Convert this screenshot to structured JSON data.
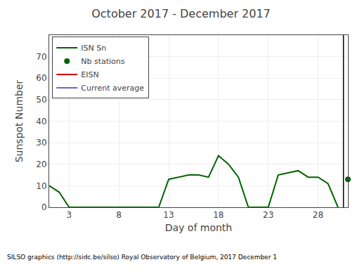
{
  "chart_data": {
    "type": "line",
    "title": "October 2017 - December 2017",
    "xlabel": "Day of month",
    "ylabel": "Sunspot Number",
    "annotations": [
      "SILSO graphics (http://sidc.be/silso) Royal Observatory of Belgium, 2017 December 1"
    ],
    "x": [
      1,
      2,
      3,
      4,
      5,
      6,
      7,
      8,
      9,
      10,
      11,
      12,
      13,
      14,
      15,
      16,
      17,
      18,
      19,
      20,
      21,
      22,
      23,
      24,
      25,
      26,
      27,
      28,
      29,
      30
    ],
    "series": [
      {
        "name": "ISN Sn",
        "color": "#006400",
        "values": [
          10,
          7,
          0,
          0,
          0,
          0,
          0,
          0,
          0,
          0,
          0,
          0,
          13,
          14,
          15,
          15,
          14,
          24,
          20,
          14,
          0,
          0,
          0,
          15,
          16,
          17,
          14,
          14,
          11,
          0
        ]
      },
      {
        "name": "Nb stations",
        "type": "scatter",
        "marker": "circle",
        "color": "#006400",
        "values": [
          null,
          null,
          null,
          null,
          null,
          null,
          null,
          null,
          null,
          null,
          null,
          null,
          null,
          null,
          null,
          null,
          null,
          null,
          null,
          null,
          null,
          null,
          null,
          null,
          null,
          null,
          null,
          null,
          null,
          null
        ]
      },
      {
        "name": "EISN",
        "color": "#cc0000",
        "values": [
          null,
          null,
          null,
          null,
          null,
          null,
          null,
          null,
          null,
          null,
          null,
          null,
          null,
          null,
          null,
          null,
          null,
          null,
          null,
          null,
          null,
          null,
          null,
          null,
          null,
          null,
          null,
          null,
          null,
          null
        ]
      },
      {
        "name": "Current average",
        "color": "#6666cc",
        "values": [
          null,
          null,
          null,
          null,
          null,
          null,
          null,
          null,
          null,
          null,
          null,
          null,
          null,
          null,
          null,
          null,
          null,
          null,
          null,
          null,
          null,
          null,
          null,
          null,
          null,
          null,
          null,
          null,
          null,
          null
        ]
      }
    ],
    "vline": {
      "x": 30.55,
      "color": "#000000"
    },
    "point": {
      "x": 31,
      "y": 13,
      "color": "#006400"
    },
    "xlim": [
      1,
      31
    ],
    "ylim": [
      0,
      80
    ],
    "xticks": [
      3,
      8,
      13,
      18,
      23,
      28
    ],
    "yticks": [
      0,
      10,
      20,
      30,
      40,
      50,
      60,
      70
    ],
    "grid": true,
    "legend": "upper left"
  }
}
